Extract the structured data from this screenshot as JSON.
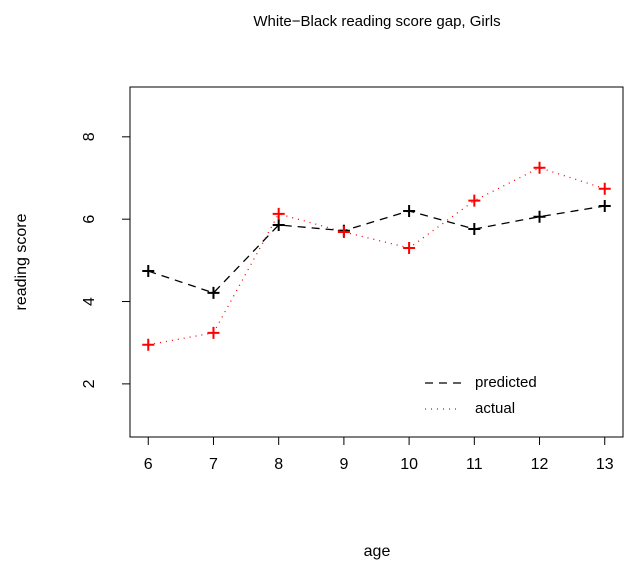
{
  "chart_data": {
    "type": "line",
    "title": "White−Black reading score gap, Girls",
    "x_label": "age",
    "y_label": "reading score",
    "x": [
      6,
      7,
      8,
      9,
      10,
      11,
      12,
      13
    ],
    "series": [
      {
        "name": "predicted",
        "color": "#000000",
        "line_style": "dashed",
        "marker": "+",
        "values": [
          4.74,
          4.21,
          5.86,
          5.72,
          6.2,
          5.76,
          6.06,
          6.32
        ]
      },
      {
        "name": "actual",
        "color": "#ff0000",
        "line_style": "dotted",
        "marker": "+",
        "values": [
          2.95,
          3.24,
          6.13,
          5.69,
          5.3,
          6.45,
          7.25,
          6.74
        ]
      }
    ],
    "xlim": [
      5.72,
      13.28
    ],
    "xticks": [
      6,
      7,
      8,
      9,
      10,
      11,
      12,
      13
    ],
    "ylim": [
      0.71,
      9.21
    ],
    "yticks": [
      2,
      4,
      6,
      8
    ],
    "legend": "bottom-right"
  }
}
